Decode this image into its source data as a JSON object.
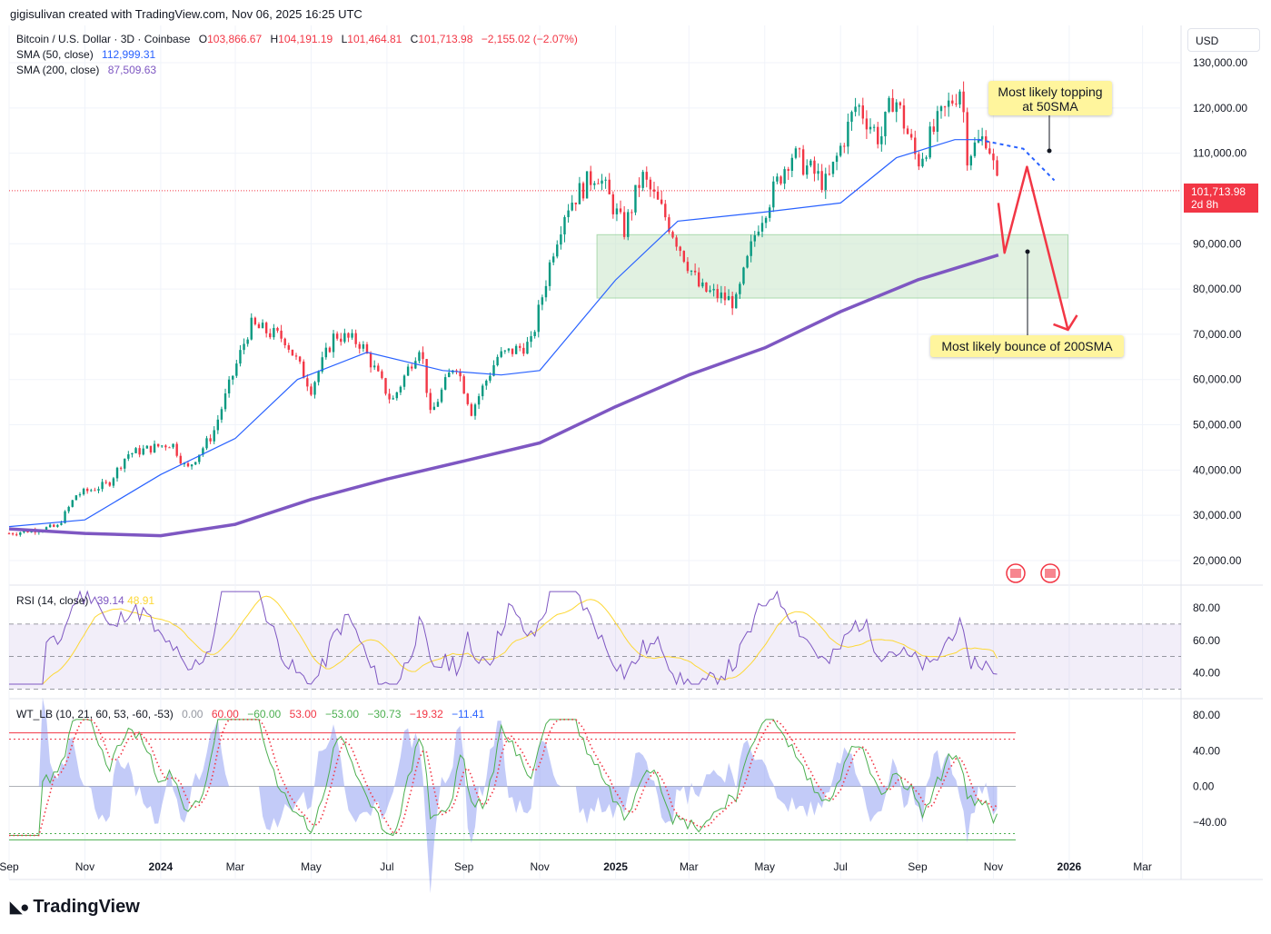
{
  "header": {
    "attribution": "gigisulivan created with TradingView.com, Nov 06, 2025 16:25 UTC"
  },
  "legend": {
    "symbol": "Bitcoin / U.S. Dollar · 3D · Coinbase",
    "o_label": "O",
    "o_value": "103,866.67",
    "h_label": "H",
    "h_value": "104,191.19",
    "l_label": "L",
    "l_value": "101,464.81",
    "c_label": "C",
    "c_value": "101,713.98",
    "change": "−2,155.02 (−2.07%)",
    "sma50_label": "SMA (50, close)",
    "sma50_value": "112,999.31",
    "sma200_label": "SMA (200, close)",
    "sma200_value": "87,509.63"
  },
  "currency_button": "USD",
  "last_price": {
    "value": "101,713.98",
    "countdown": "2d 8h"
  },
  "annotations": {
    "top": "Most likely topping\nat 50SMA",
    "bottom": "Most likely bounce of 200SMA"
  },
  "rsi_legend": {
    "label": "RSI (14, close)",
    "v1": "39.14",
    "v2": "48.91"
  },
  "wt_legend": {
    "label": "WT_LB (10, 21, 60, 53, -60, -53)",
    "values": [
      "0.00",
      "60.00",
      "−60.00",
      "53.00",
      "−53.00",
      "−30.73",
      "−19.32",
      "−11.41"
    ]
  },
  "price_axis_labels": [
    "130,000.00",
    "120,000.00",
    "110,000.00",
    "90,000.00",
    "80,000.00",
    "70,000.00",
    "60,000.00",
    "50,000.00",
    "40,000.00",
    "30,000.00",
    "20,000.00"
  ],
  "rsi_axis_labels": [
    "80.00",
    "60.00",
    "40.00"
  ],
  "wt_axis_labels": [
    "80.00",
    "40.00",
    "0.00",
    "−40.00"
  ],
  "time_axis_labels": [
    "Sep",
    "Nov",
    "2024",
    "Mar",
    "May",
    "Jul",
    "Sep",
    "Nov",
    "2025",
    "Mar",
    "May",
    "Jul",
    "Sep",
    "Nov",
    "2026",
    "Mar"
  ],
  "colors": {
    "up": "#089981",
    "down": "#f23645",
    "sma50": "#2962ff",
    "sma200": "#7e57c2",
    "rsi": "#7e57c2",
    "rsi_ma": "#fdd835",
    "wt1": "#4caf50",
    "wt2": "#f23645",
    "zone": "#c8e6c9",
    "callout": "#fff59d",
    "arrow": "#f23645"
  },
  "footer": {
    "brand": "TradingView"
  },
  "chart_data": {
    "type": "candlestick",
    "title": "Bitcoin / U.S. Dollar · 3D · Coinbase",
    "ylim": [
      15000,
      135000
    ],
    "x_range": [
      "2023-09",
      "2026-04"
    ],
    "log_scale": false,
    "price_path": [
      [
        "2023-09-01",
        26000
      ],
      [
        "2023-10-10",
        27500
      ],
      [
        "2023-10-25",
        34500
      ],
      [
        "2023-11-20",
        37000
      ],
      [
        "2023-12-05",
        43500
      ],
      [
        "2024-01-10",
        46000
      ],
      [
        "2024-01-22",
        40000
      ],
      [
        "2024-02-12",
        48000
      ],
      [
        "2024-02-28",
        61000
      ],
      [
        "2024-03-13",
        72000
      ],
      [
        "2024-04-10",
        69000
      ],
      [
        "2024-05-01",
        58000
      ],
      [
        "2024-05-20",
        70000
      ],
      [
        "2024-06-10",
        68000
      ],
      [
        "2024-07-05",
        55000
      ],
      [
        "2024-07-28",
        68000
      ],
      [
        "2024-08-05",
        52000
      ],
      [
        "2024-08-25",
        64000
      ],
      [
        "2024-09-07",
        53000
      ],
      [
        "2024-09-28",
        65000
      ],
      [
        "2024-10-25",
        68000
      ],
      [
        "2024-11-12",
        89000
      ],
      [
        "2024-11-22",
        98000
      ],
      [
        "2024-12-17",
        106000
      ],
      [
        "2025-01-08",
        93000
      ],
      [
        "2025-01-22",
        105000
      ],
      [
        "2025-02-10",
        96000
      ],
      [
        "2025-03-10",
        80000
      ],
      [
        "2025-04-08",
        77000
      ],
      [
        "2025-04-25",
        94000
      ],
      [
        "2025-05-22",
        110000
      ],
      [
        "2025-06-20",
        103000
      ],
      [
        "2025-07-14",
        121000
      ],
      [
        "2025-08-02",
        113000
      ],
      [
        "2025-08-13",
        123000
      ],
      [
        "2025-09-01",
        108000
      ],
      [
        "2025-09-18",
        117000
      ],
      [
        "2025-10-06",
        125000
      ],
      [
        "2025-10-11",
        110000
      ],
      [
        "2025-10-27",
        114000
      ],
      [
        "2025-11-05",
        101714
      ]
    ],
    "sma50": [
      [
        "2023-09-01",
        27500
      ],
      [
        "2023-11-01",
        29000
      ],
      [
        "2024-01-01",
        39000
      ],
      [
        "2024-03-01",
        47000
      ],
      [
        "2024-04-20",
        60000
      ],
      [
        "2024-06-15",
        66000
      ],
      [
        "2024-08-15",
        62000
      ],
      [
        "2024-10-01",
        61000
      ],
      [
        "2024-11-01",
        62000
      ],
      [
        "2025-01-01",
        82000
      ],
      [
        "2025-02-20",
        95000
      ],
      [
        "2025-05-01",
        97000
      ],
      [
        "2025-07-01",
        99000
      ],
      [
        "2025-08-15",
        109000
      ],
      [
        "2025-10-01",
        113000
      ],
      [
        "2025-10-20",
        113000
      ]
    ],
    "sma200": [
      [
        "2023-09-01",
        27000
      ],
      [
        "2023-11-01",
        26000
      ],
      [
        "2024-01-01",
        25500
      ],
      [
        "2024-03-01",
        28000
      ],
      [
        "2024-05-01",
        33500
      ],
      [
        "2024-07-01",
        38000
      ],
      [
        "2024-09-01",
        42000
      ],
      [
        "2024-11-01",
        46000
      ],
      [
        "2025-01-01",
        54000
      ],
      [
        "2025-03-01",
        61000
      ],
      [
        "2025-05-01",
        67000
      ],
      [
        "2025-07-01",
        75000
      ],
      [
        "2025-09-01",
        82000
      ],
      [
        "2025-11-05",
        87510
      ]
    ],
    "zone": {
      "from": "2024-12-17",
      "to": "2025-12-31",
      "low": 78000,
      "high": 92000
    },
    "projection_path": [
      [
        "2025-11-05",
        99000
      ],
      [
        "2025-11-10",
        88000
      ],
      [
        "2025-11-28",
        107000
      ],
      [
        "2025-12-31",
        71000
      ]
    ],
    "projected_sma50": [
      [
        "2025-10-20",
        113000
      ],
      [
        "2025-11-25",
        111000
      ],
      [
        "2025-12-20",
        104000
      ]
    ],
    "rsi": {
      "ylim": [
        25,
        100
      ],
      "upper": 70,
      "lower": 30,
      "mid": 50,
      "last": 39.14,
      "ma_last": 48.91
    },
    "wt": {
      "ylim": [
        -75,
        100
      ],
      "ob1": 60,
      "ob2": 53,
      "os1": -60,
      "os2": -53,
      "wt1_last": -30.73,
      "wt2_last": -19.32
    }
  }
}
